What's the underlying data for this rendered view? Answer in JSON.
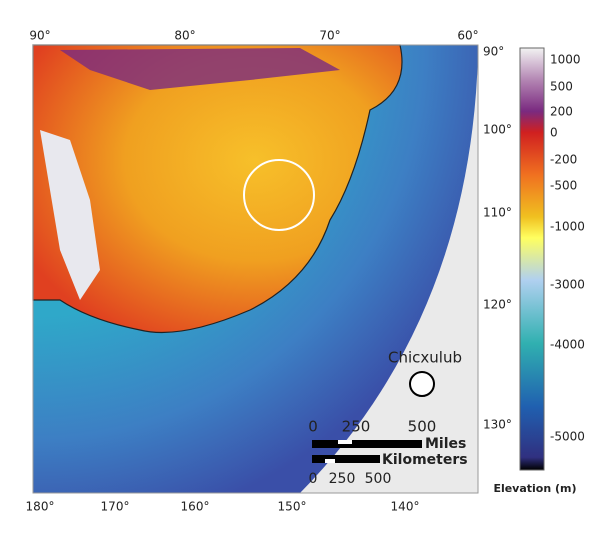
{
  "map": {
    "top_labels": [
      "90°",
      "80°",
      "70°",
      "60°"
    ],
    "right_labels": [
      "90°",
      "100°",
      "110°",
      "120°",
      "130°"
    ],
    "bottom_labels": [
      "180°",
      "170°",
      "160°",
      "150°",
      "140°"
    ],
    "crater_label": "Chicxulub",
    "scale": {
      "miles_ticks": [
        "0",
        "250",
        "500"
      ],
      "miles_unit": "Miles",
      "km_unit": "Kilometers",
      "km_ticks": [
        "0",
        "250",
        "500"
      ]
    }
  },
  "legend": {
    "title": "Elevation (m)",
    "ticks": [
      1000,
      500,
      200,
      0,
      -200,
      -500,
      -1000,
      -3000,
      -4000,
      -5000
    ]
  }
}
